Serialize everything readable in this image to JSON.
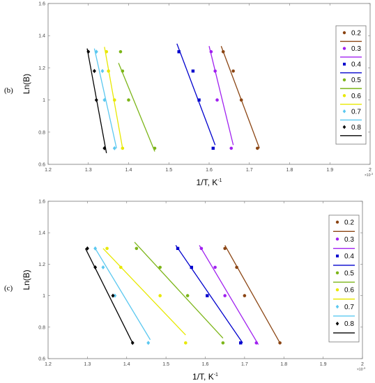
{
  "chart_data": [
    {
      "type": "scatter",
      "panel_label": "(b)",
      "xlabel": "1/T, K",
      "xlabel_sup": "-1",
      "ylabel": "Ln(B)",
      "x_exponent_label": "×10",
      "x_exponent_power": "-3",
      "xlim": [
        1.2,
        2.0
      ],
      "ylim": [
        0.6,
        1.6
      ],
      "x_ticks": [
        "1.2",
        "1.3",
        "1.4",
        "1.5",
        "1.6",
        "1.7",
        "1.8",
        "1.9",
        "2"
      ],
      "x_tick_values": [
        1.2,
        1.3,
        1.4,
        1.5,
        1.6,
        1.7,
        1.8,
        1.9,
        2.0
      ],
      "y_ticks": [
        "0.6",
        "0.8",
        "1",
        "1.2",
        "1.4",
        "1.6"
      ],
      "y_tick_values": [
        0.6,
        0.8,
        1.0,
        1.2,
        1.4,
        1.6
      ],
      "grid": false,
      "legend_position": "right",
      "series": [
        {
          "name": "0.2",
          "color": "#8B4513",
          "marker": "circle",
          "x": [
            1.635,
            1.66,
            1.68,
            1.72
          ],
          "y": [
            1.3,
            1.18,
            1.0,
            0.7
          ],
          "fit": [
            [
              1.63,
              1.335
            ],
            [
              1.725,
              0.7
            ]
          ]
        },
        {
          "name": "0.3",
          "color": "#A020F0",
          "marker": "circle",
          "x": [
            1.605,
            1.615,
            1.62,
            1.655
          ],
          "y": [
            1.3,
            1.18,
            1.0,
            0.7
          ],
          "fit": [
            [
              1.6,
              1.335
            ],
            [
              1.66,
              0.72
            ]
          ]
        },
        {
          "name": "0.4",
          "color": "#0000CD",
          "marker": "square",
          "x": [
            1.525,
            1.56,
            1.575,
            1.61
          ],
          "y": [
            1.3,
            1.18,
            1.0,
            0.7
          ],
          "fit": [
            [
              1.52,
              1.35
            ],
            [
              1.615,
              0.72
            ]
          ]
        },
        {
          "name": "0.5",
          "color": "#7CB518",
          "marker": "circle",
          "x": [
            1.38,
            1.385,
            1.4,
            1.465
          ],
          "y": [
            1.3,
            1.18,
            1.0,
            0.7
          ],
          "fit": [
            [
              1.375,
              1.23
            ],
            [
              1.465,
              0.68
            ]
          ]
        },
        {
          "name": "0.6",
          "color": "#E8E800",
          "marker": "circle",
          "x": [
            1.345,
            1.35,
            1.365,
            1.385
          ],
          "y": [
            1.3,
            1.18,
            1.0,
            0.7
          ],
          "fit": [
            [
              1.34,
              1.33
            ],
            [
              1.385,
              0.7
            ]
          ]
        },
        {
          "name": "0.7",
          "color": "#5BC8F0",
          "marker": "diamond",
          "x": [
            1.32,
            1.335,
            1.34,
            1.365
          ],
          "y": [
            1.3,
            1.18,
            1.0,
            0.7
          ],
          "fit": [
            [
              1.315,
              1.32
            ],
            [
              1.37,
              0.7
            ]
          ]
        },
        {
          "name": "0.8",
          "color": "#000000",
          "marker": "diamond",
          "x": [
            1.3,
            1.315,
            1.32,
            1.34
          ],
          "y": [
            1.3,
            1.18,
            1.0,
            0.7
          ],
          "fit": [
            [
              1.297,
              1.32
            ],
            [
              1.345,
              0.67
            ]
          ]
        }
      ]
    },
    {
      "type": "scatter",
      "panel_label": "(c)",
      "xlabel": "1/T, K",
      "xlabel_sup": "-1",
      "ylabel": "Ln(B)",
      "x_exponent_label": "×10",
      "x_exponent_power": "-3",
      "xlim": [
        1.2,
        2.0
      ],
      "ylim": [
        0.6,
        1.6
      ],
      "x_ticks": [
        "1.2",
        "1.3",
        "1.4",
        "1.5",
        "1.6",
        "1.7",
        "1.8",
        "1.9",
        "2"
      ],
      "x_tick_values": [
        1.2,
        1.3,
        1.4,
        1.5,
        1.6,
        1.7,
        1.8,
        1.9,
        2.0
      ],
      "y_ticks": [
        "0.6",
        "0.8",
        "1",
        "1.2",
        "1.4",
        "1.6"
      ],
      "y_tick_values": [
        0.6,
        0.8,
        1.0,
        1.2,
        1.4,
        1.6
      ],
      "grid": false,
      "legend_position": "right",
      "series": [
        {
          "name": "0.2",
          "color": "#8B4513",
          "marker": "circle",
          "x": [
            1.65,
            1.68,
            1.7,
            1.79
          ],
          "y": [
            1.3,
            1.18,
            1.0,
            0.7
          ],
          "fit": [
            [
              1.65,
              1.32
            ],
            [
              1.79,
              0.7
            ]
          ]
        },
        {
          "name": "0.3",
          "color": "#A020F0",
          "marker": "circle",
          "x": [
            1.59,
            1.625,
            1.65,
            1.73
          ],
          "y": [
            1.3,
            1.18,
            1.0,
            0.7
          ],
          "fit": [
            [
              1.585,
              1.32
            ],
            [
              1.735,
              0.69
            ]
          ]
        },
        {
          "name": "0.4",
          "color": "#0000CD",
          "marker": "square",
          "x": [
            1.53,
            1.565,
            1.605,
            1.69
          ],
          "y": [
            1.3,
            1.18,
            1.0,
            0.7
          ],
          "fit": [
            [
              1.525,
              1.32
            ],
            [
              1.695,
              0.7
            ]
          ]
        },
        {
          "name": "0.5",
          "color": "#7CB518",
          "marker": "circle",
          "x": [
            1.425,
            1.485,
            1.555,
            1.645
          ],
          "y": [
            1.3,
            1.18,
            1.0,
            0.7
          ],
          "fit": [
            [
              1.42,
              1.34
            ],
            [
              1.645,
              0.73
            ]
          ]
        },
        {
          "name": "0.6",
          "color": "#E8E800",
          "marker": "circle",
          "x": [
            1.35,
            1.385,
            1.485,
            1.55
          ],
          "y": [
            1.3,
            1.18,
            1.0,
            0.7
          ],
          "fit": [
            [
              1.34,
              1.3
            ],
            [
              1.55,
              0.75
            ]
          ]
        },
        {
          "name": "0.7",
          "color": "#5BC8F0",
          "marker": "diamond",
          "x": [
            1.32,
            1.34,
            1.37,
            1.455
          ],
          "y": [
            1.3,
            1.18,
            1.0,
            0.7
          ],
          "fit": [
            [
              1.32,
              1.3
            ],
            [
              1.46,
              0.72
            ]
          ]
        },
        {
          "name": "0.8",
          "color": "#000000",
          "marker": "diamond",
          "x": [
            1.3,
            1.32,
            1.365,
            1.415
          ],
          "y": [
            1.3,
            1.18,
            1.0,
            0.7
          ],
          "fit": [
            [
              1.295,
              1.3
            ],
            [
              1.415,
              0.7
            ]
          ]
        }
      ]
    }
  ]
}
